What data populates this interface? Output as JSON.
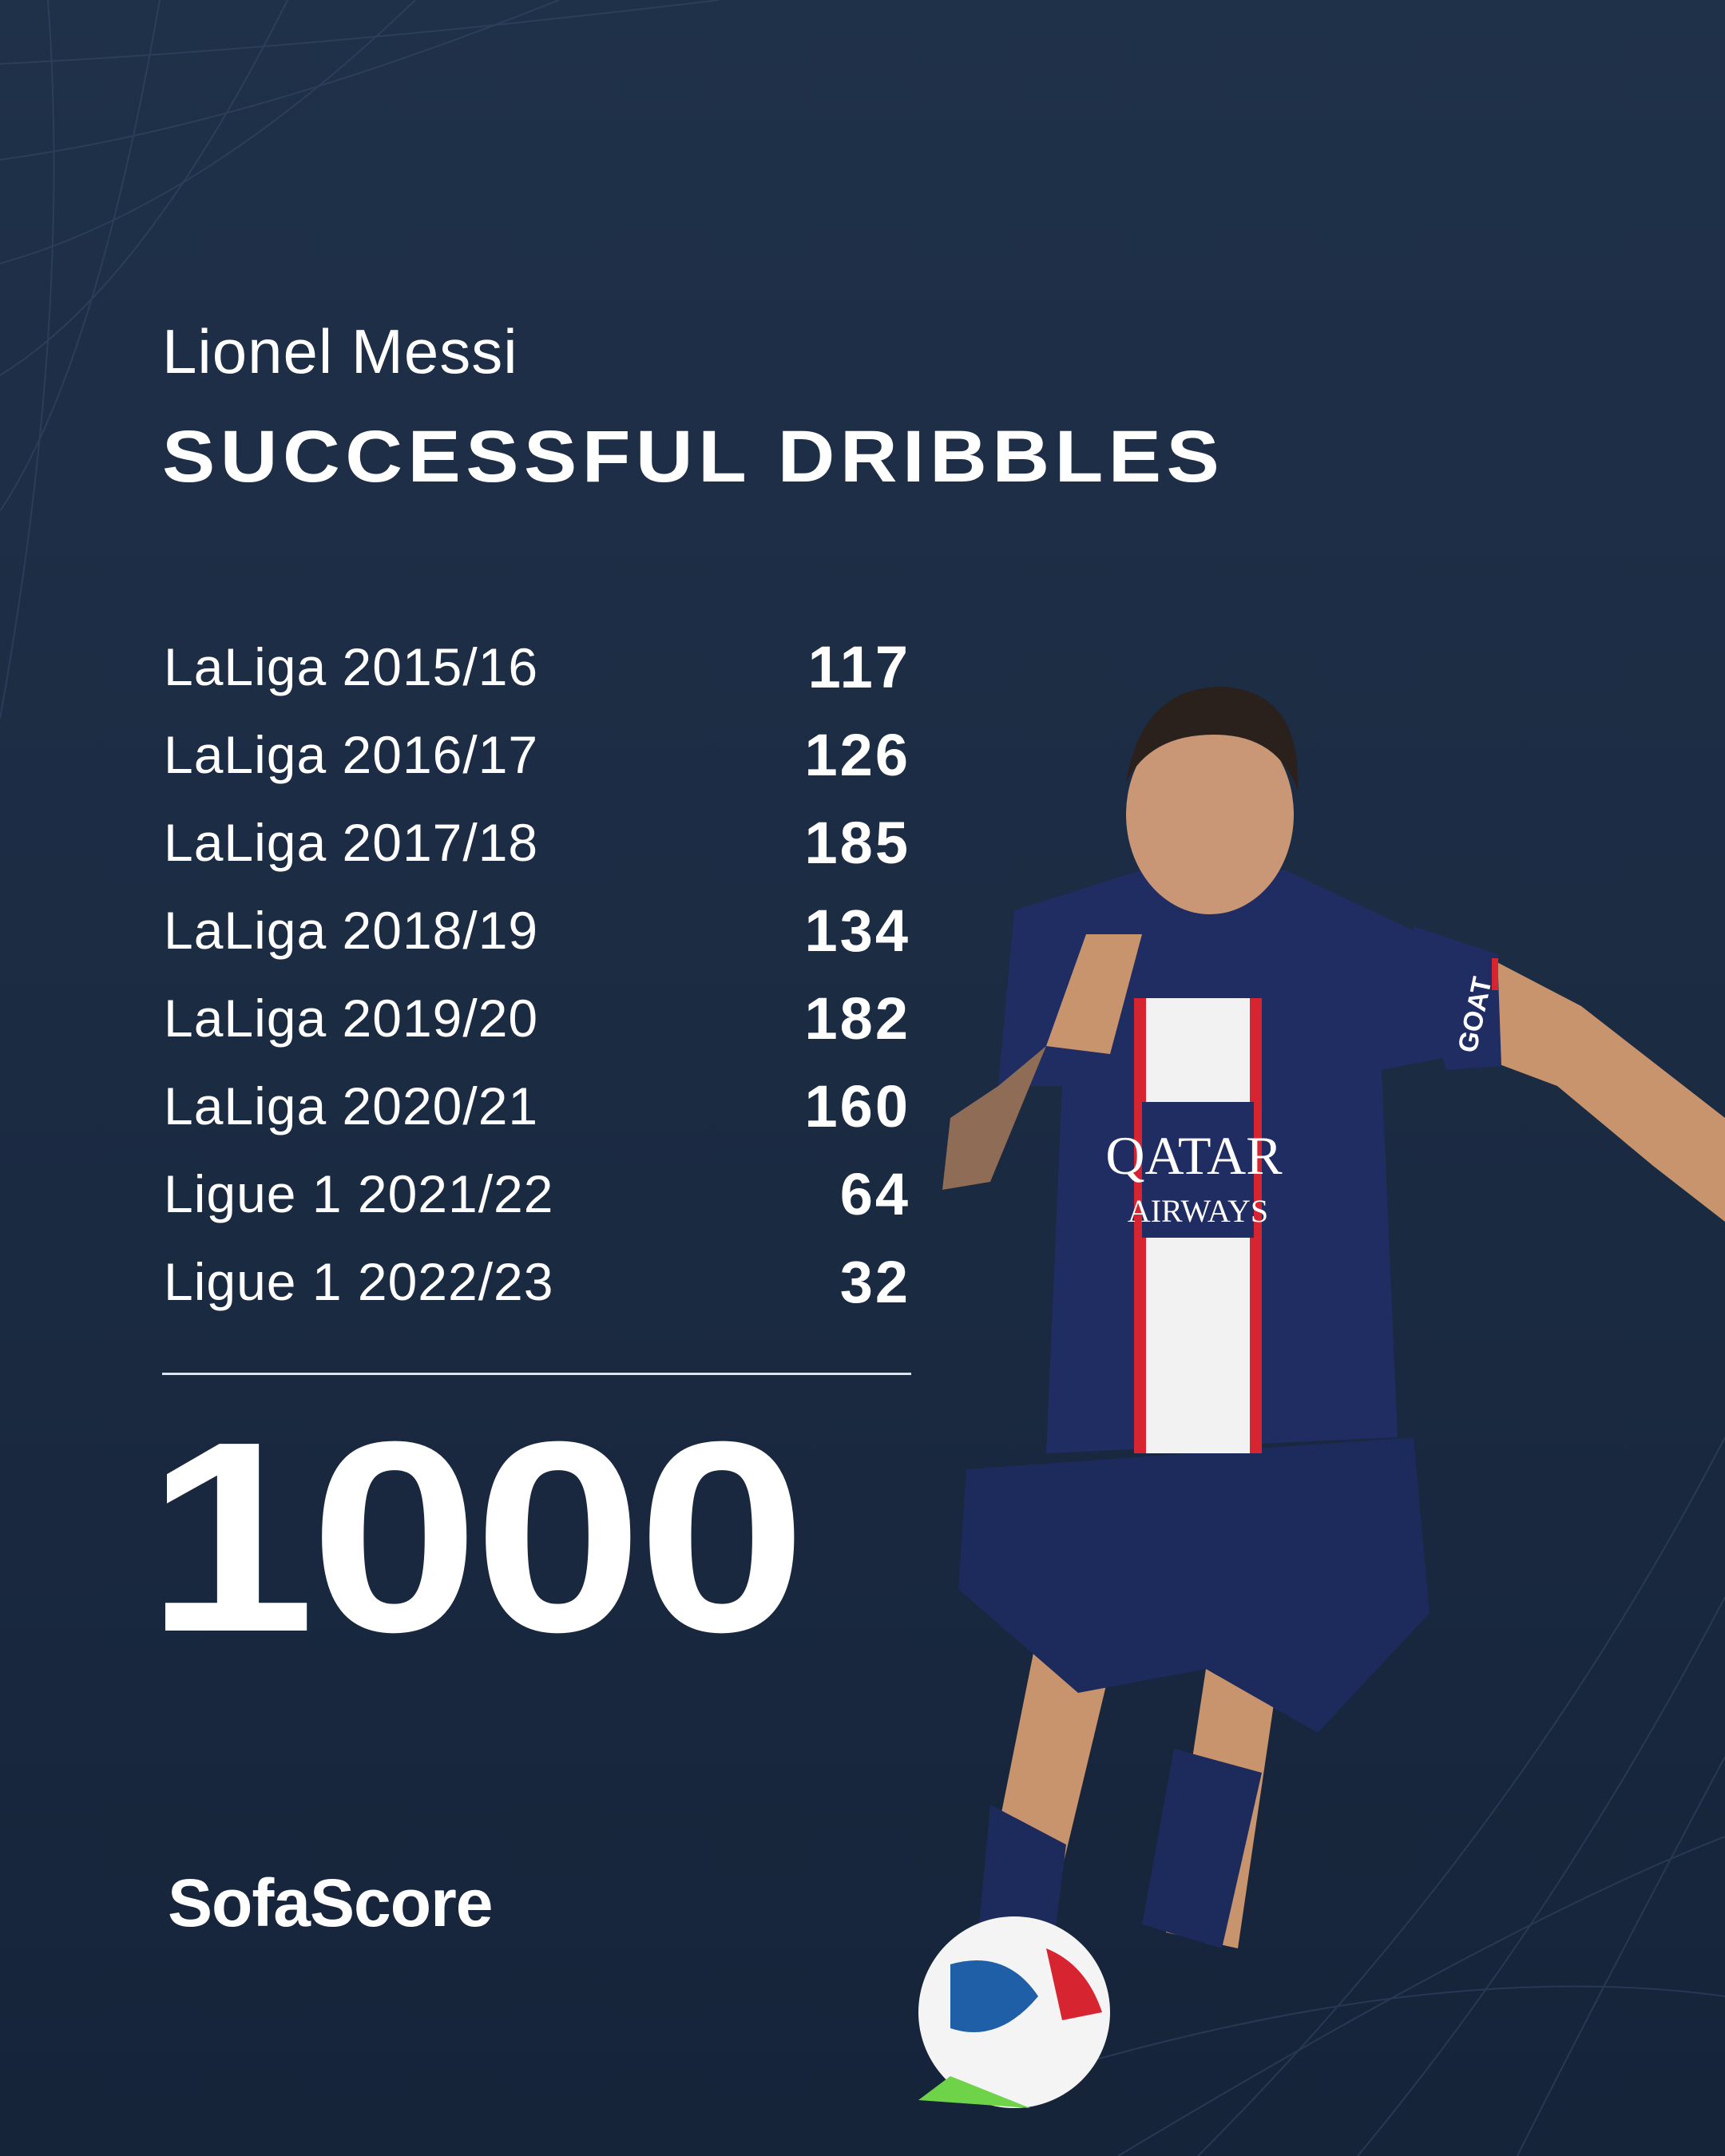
{
  "player_name": "Lionel Messi",
  "title": "SUCCESSFUL DRIBBLES",
  "rows": [
    {
      "label": "LaLiga 2015/16",
      "value": "117"
    },
    {
      "label": "LaLiga 2016/17",
      "value": "126"
    },
    {
      "label": "LaLiga 2017/18",
      "value": "185"
    },
    {
      "label": "LaLiga 2018/19",
      "value": "134"
    },
    {
      "label": "LaLiga 2019/20",
      "value": "182"
    },
    {
      "label": "LaLiga 2020/21",
      "value": "160"
    },
    {
      "label": "Ligue 1 2021/22",
      "value": "64"
    },
    {
      "label": "Ligue 1 2022/23",
      "value": "32"
    }
  ],
  "total": "1000",
  "brand": "SofaScore",
  "jersey": {
    "sponsor_line1": "QATAR",
    "sponsor_line2": "AIRWAYS",
    "sleeve": "GOAT"
  },
  "colors": {
    "background": "#1e2f47",
    "text": "#ffffff",
    "jersey": "#1d2a5c",
    "stripe_red": "#d62531"
  }
}
